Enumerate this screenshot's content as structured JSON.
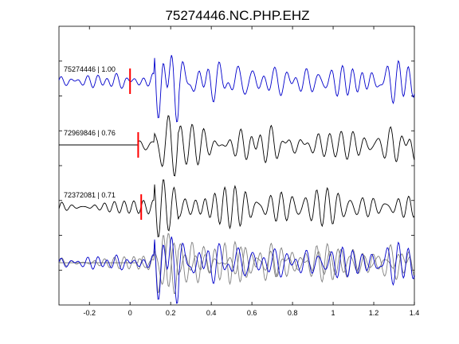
{
  "chart_data": {
    "type": "line",
    "title": "75274446.NC.PHP.EHZ",
    "xlabel": "",
    "ylabel": "",
    "xlim": [
      -0.35,
      1.4
    ],
    "x_ticks": [
      -0.2,
      0,
      0.2,
      0.4,
      0.6,
      0.8,
      1,
      1.2,
      1.4
    ],
    "x_tick_labels": [
      "-0.2",
      "0",
      "0.2",
      "0.4",
      "0.6",
      "0.8",
      "1",
      "1.2",
      "1.4"
    ],
    "grid": false,
    "legend": "none",
    "colors": {
      "main": "#0000cc",
      "other": "#000000",
      "overlay_gray": "#808080",
      "pick": "#ff0000"
    },
    "series": [
      {
        "name": "75274446 | 1.00",
        "color": "#0000cc",
        "pick_time": 0.0,
        "onset": -0.35,
        "seed": 3
      },
      {
        "name": "72969846 | 0.76",
        "color": "#000000",
        "pick_time": 0.04,
        "onset": 0.04,
        "seed": 11
      },
      {
        "name": "72372081 | 0.71",
        "color": "#000000",
        "pick_time": 0.055,
        "onset": -0.35,
        "seed": 23
      }
    ],
    "overlay": {
      "description_colors": [
        "#808080",
        "#808080",
        "#0000cc"
      ]
    }
  }
}
